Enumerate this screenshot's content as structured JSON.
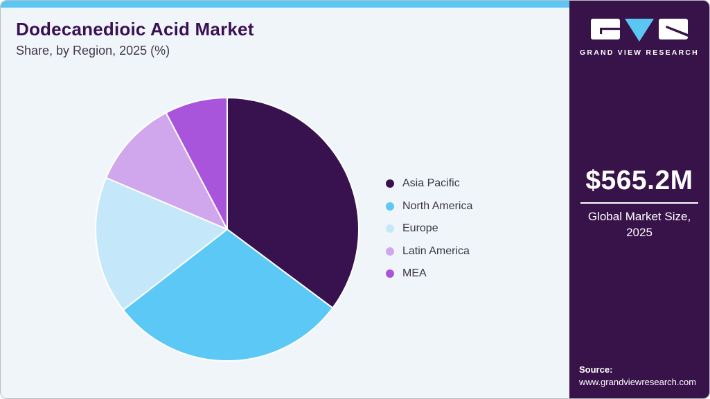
{
  "header": {
    "title": "Dodecanedioic Acid Market",
    "subtitle": "Share, by Region, 2025 (%)"
  },
  "chart_data": {
    "type": "pie",
    "title": "Dodecanedioic Acid Market Share, by Region, 2025 (%)",
    "categories": [
      "Asia Pacific",
      "North America",
      "Europe",
      "Latin America",
      "MEA"
    ],
    "values": [
      35.2,
      29.3,
      16.9,
      10.9,
      7.7
    ],
    "colors": [
      "#38124e",
      "#5bc8f5",
      "#c4e8fa",
      "#d0a6ec",
      "#a855dc"
    ],
    "start_angle_deg": 0,
    "direction": "clockwise",
    "legend_position": "right",
    "slice_separator_color": "#ffffff"
  },
  "sidebar": {
    "logo": {
      "brand": "GRAND VIEW RESEARCH"
    },
    "market_size": {
      "value": "$565.2M",
      "label": "Global Market Size, 2025"
    },
    "source": {
      "label": "Source:",
      "url": "www.grandviewresearch.com"
    }
  },
  "colors": {
    "accent_blue": "#5bc6f2",
    "sidebar_bg": "#381349",
    "panel_bg": "#f0f5fa",
    "title_text": "#3a1053"
  }
}
